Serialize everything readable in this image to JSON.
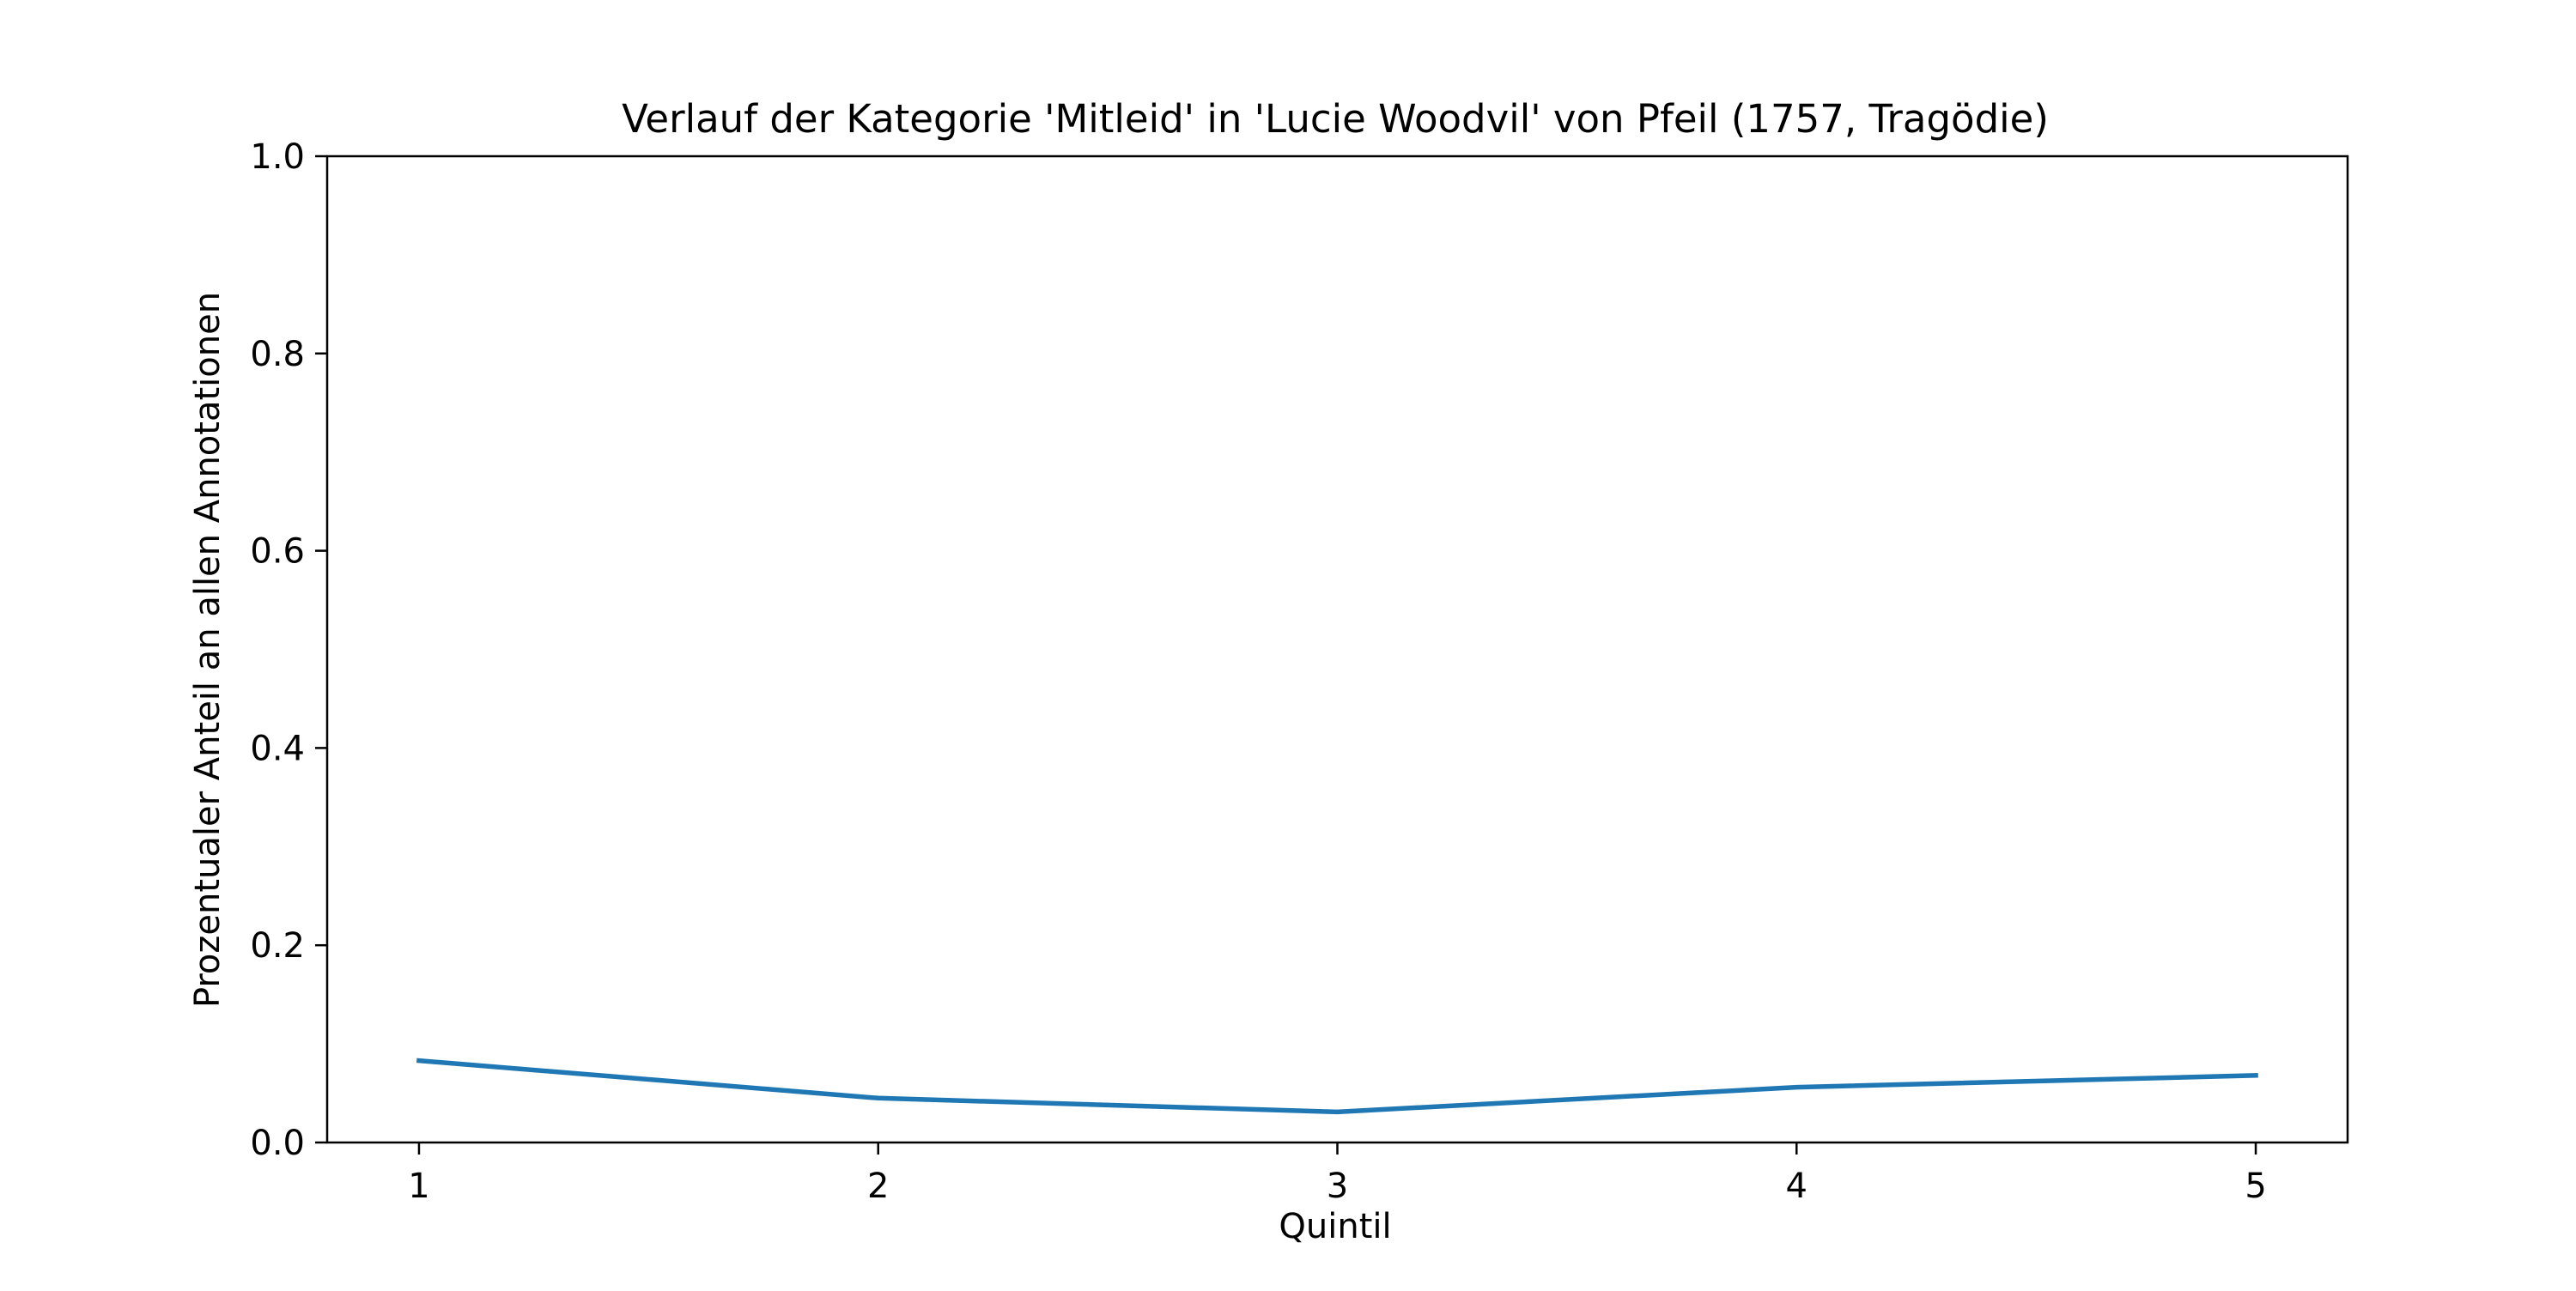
{
  "chart_data": {
    "type": "line",
    "title": "Verlauf der Kategorie 'Mitleid' in 'Lucie Woodvil' von Pfeil (1757, Tragödie)",
    "xlabel": "Quintil",
    "ylabel": "Prozentualer Anteil an allen Annotationen",
    "x": [
      1,
      2,
      3,
      4,
      5
    ],
    "series": [
      {
        "values": [
          0.083,
          0.045,
          0.031,
          0.056,
          0.068
        ],
        "color": "#1f77b4"
      }
    ],
    "xlim": [
      0.8,
      5.2
    ],
    "ylim": [
      0.0,
      1.0
    ],
    "xticks": [
      1,
      2,
      3,
      4,
      5
    ],
    "xtick_labels": [
      "1",
      "2",
      "3",
      "4",
      "5"
    ],
    "yticks": [
      0.0,
      0.2,
      0.4,
      0.6,
      0.8,
      1.0
    ],
    "ytick_labels": [
      "0.0",
      "0.2",
      "0.4",
      "0.6",
      "0.8",
      "1.0"
    ],
    "grid": false,
    "legend": "none"
  }
}
